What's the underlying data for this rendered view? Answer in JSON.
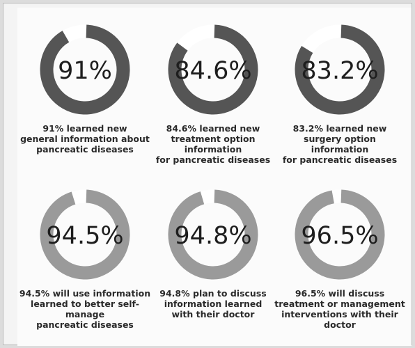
{
  "chart_data": {
    "type": "donut",
    "colors": {
      "top_row": "#555555",
      "bottom_row": "#9a9a9a",
      "track": "#ffffff"
    },
    "items": [
      {
        "value": 91,
        "label": "91%",
        "caption": [
          "91% learned new",
          "general information about",
          "pancreatic diseases"
        ]
      },
      {
        "value": 84.6,
        "label": "84.6%",
        "caption": [
          "84.6% learned new",
          "treatment option information",
          "for pancreatic diseases"
        ]
      },
      {
        "value": 83.2,
        "label": "83.2%",
        "caption": [
          "83.2% learned new",
          "surgery option information",
          "for pancreatic diseases"
        ]
      },
      {
        "value": 94.5,
        "label": "94.5%",
        "caption": [
          "94.5% will use information",
          "learned to better self-manage",
          "pancreatic diseases"
        ]
      },
      {
        "value": 94.8,
        "label": "94.8%",
        "caption": [
          "94.8% plan to discuss",
          "information learned",
          "with their doctor"
        ]
      },
      {
        "value": 96.5,
        "label": "96.5%",
        "caption": [
          "96.5% will discuss",
          "treatment or management",
          "interventions with their doctor"
        ]
      }
    ]
  }
}
